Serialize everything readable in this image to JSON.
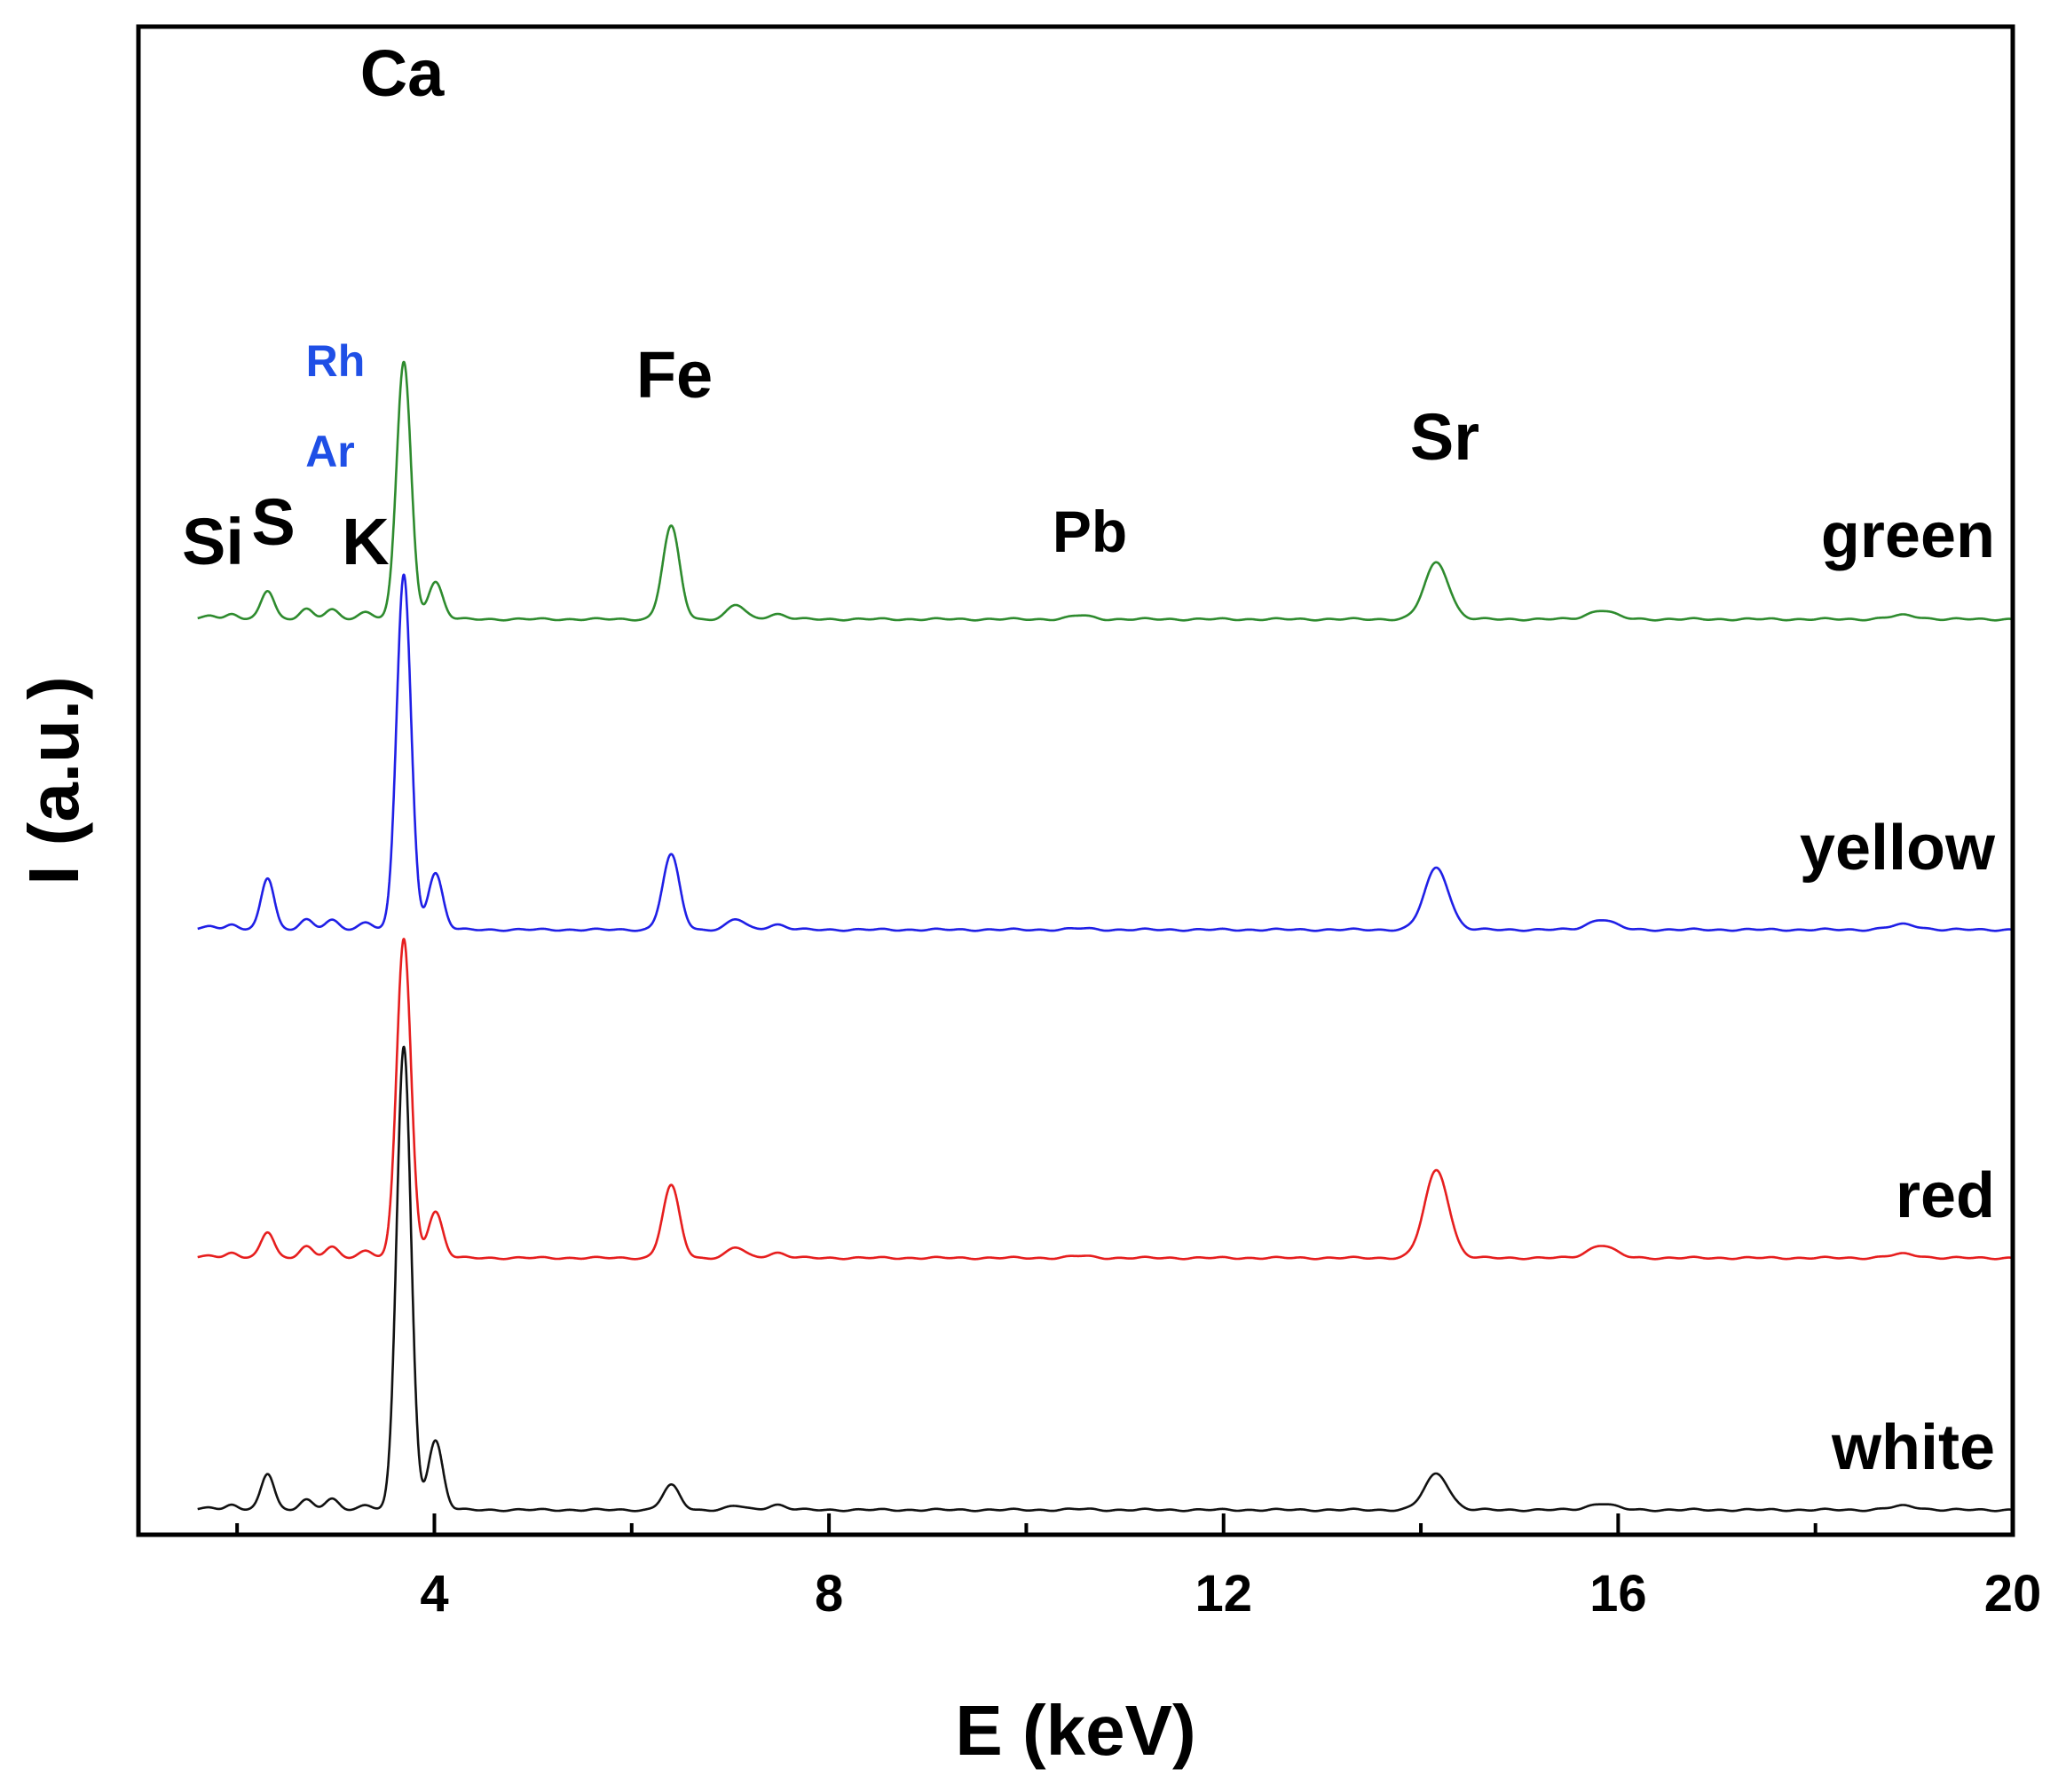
{
  "chart_data": {
    "type": "line",
    "title": "",
    "xlabel": "E (keV)",
    "ylabel": "I (a.u.)",
    "xlim": [
      1,
      20
    ],
    "xticks": [
      4,
      8,
      12,
      16,
      20
    ],
    "x_minor_ticks": [
      2,
      6,
      10,
      14,
      18
    ],
    "yticks_shown": false,
    "grid": false,
    "series_colors": {
      "green": "#2e8b2e",
      "yellow": "#1f1fe6",
      "red": "#e61e1e",
      "white": "#111111"
    },
    "series": [
      {
        "name": "green",
        "color": "#2e8b2e",
        "peaks": [
          {
            "e": 1.74,
            "h": 1.5
          },
          {
            "e": 1.95,
            "h": 2
          },
          {
            "e": 2.31,
            "h": 11
          },
          {
            "e": 2.7,
            "h": 4
          },
          {
            "e": 2.96,
            "h": 3.5
          },
          {
            "e": 3.31,
            "h": 3
          },
          {
            "e": 3.69,
            "h": 100
          },
          {
            "e": 4.01,
            "h": 14.5
          },
          {
            "e": 6.4,
            "h": 36
          },
          {
            "e": 7.06,
            "h": 5.5
          },
          {
            "e": 7.47,
            "h": 2
          },
          {
            "e": 10.55,
            "h": 1.5
          },
          {
            "e": 14.16,
            "h": 22
          },
          {
            "e": 15.83,
            "h": 3.5
          },
          {
            "e": 18.9,
            "h": 1.5
          }
        ]
      },
      {
        "name": "yellow",
        "color": "#1f1fe6",
        "peaks": [
          {
            "e": 1.74,
            "h": 1.5
          },
          {
            "e": 1.95,
            "h": 2
          },
          {
            "e": 2.31,
            "h": 20
          },
          {
            "e": 2.7,
            "h": 4
          },
          {
            "e": 2.96,
            "h": 3.5
          },
          {
            "e": 3.31,
            "h": 3
          },
          {
            "e": 3.69,
            "h": 138
          },
          {
            "e": 4.01,
            "h": 22
          },
          {
            "e": 6.4,
            "h": 29
          },
          {
            "e": 7.06,
            "h": 4
          },
          {
            "e": 7.47,
            "h": 2
          },
          {
            "e": 10.55,
            "h": 0.5
          },
          {
            "e": 14.16,
            "h": 24
          },
          {
            "e": 15.83,
            "h": 4
          },
          {
            "e": 18.9,
            "h": 2
          }
        ]
      },
      {
        "name": "red",
        "color": "#e61e1e",
        "peaks": [
          {
            "e": 1.74,
            "h": 1
          },
          {
            "e": 1.95,
            "h": 2
          },
          {
            "e": 2.31,
            "h": 10
          },
          {
            "e": 2.7,
            "h": 4.5
          },
          {
            "e": 2.96,
            "h": 4
          },
          {
            "e": 3.31,
            "h": 3
          },
          {
            "e": 3.69,
            "h": 124
          },
          {
            "e": 4.01,
            "h": 18
          },
          {
            "e": 6.4,
            "h": 28
          },
          {
            "e": 7.06,
            "h": 4
          },
          {
            "e": 7.47,
            "h": 2
          },
          {
            "e": 10.55,
            "h": 0.8
          },
          {
            "e": 14.16,
            "h": 34
          },
          {
            "e": 15.83,
            "h": 5
          },
          {
            "e": 18.9,
            "h": 1.5
          }
        ]
      },
      {
        "name": "white",
        "color": "#111111",
        "peaks": [
          {
            "e": 1.74,
            "h": 1
          },
          {
            "e": 1.95,
            "h": 2
          },
          {
            "e": 2.31,
            "h": 14
          },
          {
            "e": 2.7,
            "h": 4
          },
          {
            "e": 2.96,
            "h": 4
          },
          {
            "e": 3.31,
            "h": 2
          },
          {
            "e": 3.69,
            "h": 180
          },
          {
            "e": 4.01,
            "h": 27
          },
          {
            "e": 6.4,
            "h": 9.5
          },
          {
            "e": 7.06,
            "h": 1.5
          },
          {
            "e": 7.47,
            "h": 2
          },
          {
            "e": 10.55,
            "h": 0.3
          },
          {
            "e": 14.16,
            "h": 14
          },
          {
            "e": 15.83,
            "h": 2.5
          },
          {
            "e": 18.9,
            "h": 1.5
          }
        ]
      }
    ],
    "series_labels": [
      "green",
      "yellow",
      "red",
      "white"
    ],
    "annotations": [
      {
        "text": "Si",
        "e": 1.6,
        "color": "#000000",
        "size": "big"
      },
      {
        "text": "S",
        "e": 2.3,
        "color": "#000000",
        "size": "big"
      },
      {
        "text": "K",
        "e": 3.0,
        "color": "#000000",
        "size": "big"
      },
      {
        "text": "Ca",
        "e": 3.7,
        "color": "#000000",
        "size": "big"
      },
      {
        "text": "Rh",
        "e": 2.9,
        "color": "#1f4fe6",
        "size": "small"
      },
      {
        "text": "Ar",
        "e": 2.9,
        "color": "#1f4fe6",
        "size": "small"
      },
      {
        "text": "Fe",
        "e": 6.4,
        "color": "#000000",
        "size": "big"
      },
      {
        "text": "Pb",
        "e": 10.6,
        "color": "#000000",
        "size": "mid"
      },
      {
        "text": "Sr",
        "e": 14.1,
        "color": "#000000",
        "size": "big"
      }
    ]
  }
}
